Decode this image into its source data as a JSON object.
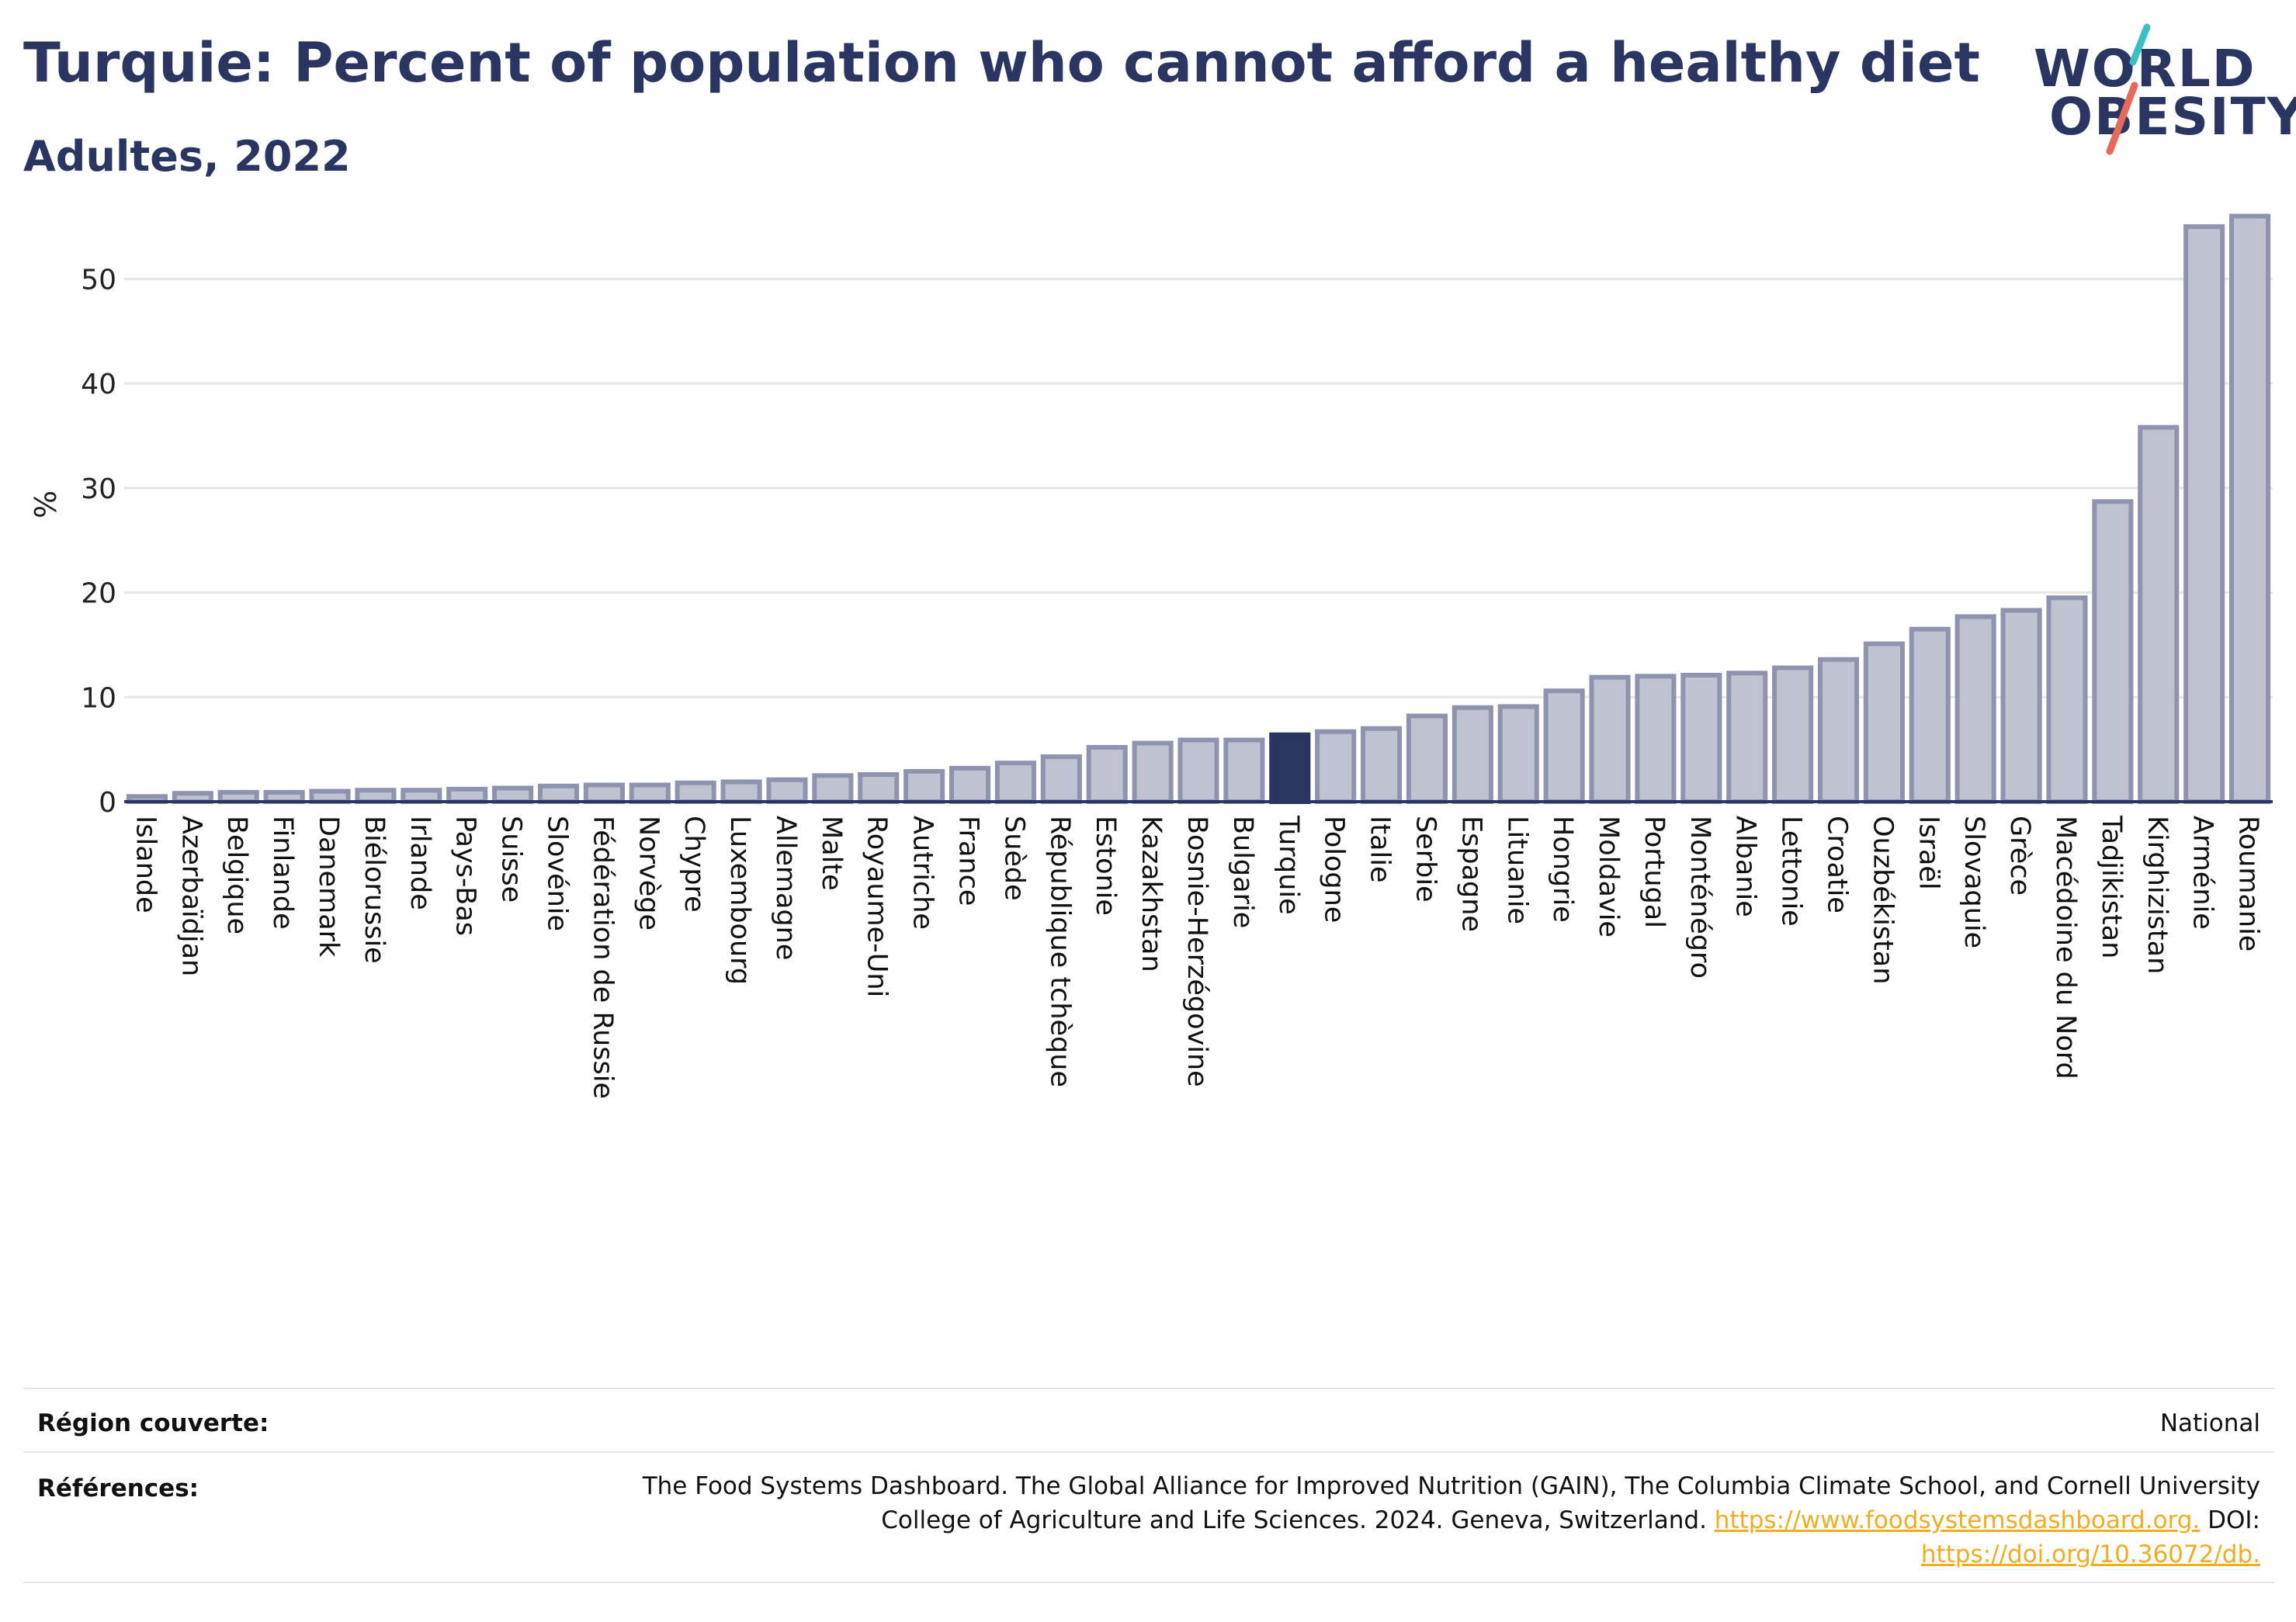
{
  "header": {
    "title": "Turquie: Percent of population who cannot afford a healthy diet",
    "subtitle": "Adultes, 2022"
  },
  "logo": {
    "line1": "WORLD",
    "line2": "OBESITY",
    "accent_teal": "#3bbfc4",
    "accent_red": "#e8685a"
  },
  "colors": {
    "bar_fill": "#bfc3d1",
    "bar_stroke": "#8e94ad",
    "highlight": "#2b3561",
    "grid": "#e6e6e6",
    "axis": "#2b3561"
  },
  "chart_data": {
    "type": "bar",
    "title": "",
    "xlabel": "",
    "ylabel": "%",
    "ylim": [
      0,
      57
    ],
    "yticks": [
      0,
      10,
      20,
      30,
      40,
      50
    ],
    "highlight": "Turquie",
    "grid": true,
    "categories": [
      "Islande",
      "Azerbaïdjan",
      "Belgique",
      "Finlande",
      "Danemark",
      "Biélorussie",
      "Irlande",
      "Pays-Bas",
      "Suisse",
      "Slovénie",
      "Fédération de Russie",
      "Norvège",
      "Chypre",
      "Luxembourg",
      "Allemagne",
      "Malte",
      "Royaume-Uni",
      "Autriche",
      "France",
      "Suède",
      "République tchèque",
      "Estonie",
      "Kazakhstan",
      "Bosnie-Herzégovine",
      "Bulgarie",
      "Turquie",
      "Pologne",
      "Italie",
      "Serbie",
      "Espagne",
      "Lituanie",
      "Hongrie",
      "Moldavie",
      "Portugal",
      "Monténégro",
      "Albanie",
      "Lettonie",
      "Croatie",
      "Ouzbékistan",
      "Israël",
      "Slovaquie",
      "Grèce",
      "Macédoine du Nord",
      "Tadjikistan",
      "Kirghizistan",
      "Arménie",
      "Roumanie"
    ],
    "values": [
      0.5,
      0.8,
      0.9,
      0.9,
      1.0,
      1.1,
      1.1,
      1.2,
      1.3,
      1.5,
      1.6,
      1.6,
      1.8,
      1.9,
      2.1,
      2.5,
      2.6,
      2.9,
      3.2,
      3.7,
      4.3,
      5.2,
      5.6,
      5.9,
      5.9,
      6.4,
      6.7,
      7.0,
      8.2,
      9.0,
      9.1,
      10.6,
      11.9,
      12.0,
      12.1,
      12.3,
      12.8,
      13.6,
      15.1,
      16.5,
      17.7,
      18.3,
      19.5,
      28.7,
      35.8,
      55.0,
      56.0
    ]
  },
  "footer": {
    "region_label": "Région couverte:",
    "region_value": "National",
    "references_label": "Références:",
    "references_text": "The Food Systems Dashboard. The Global Alliance for Improved Nutrition (GAIN), The Columbia Climate School, and Cornell University College of Agriculture and Life Sciences. 2024. Geneva, Switzerland.",
    "references_link1": "https://www.foodsystemsdashboard.org.",
    "references_doi_label": "DOI:",
    "references_link2": "https://doi.org/10.36072/db."
  }
}
